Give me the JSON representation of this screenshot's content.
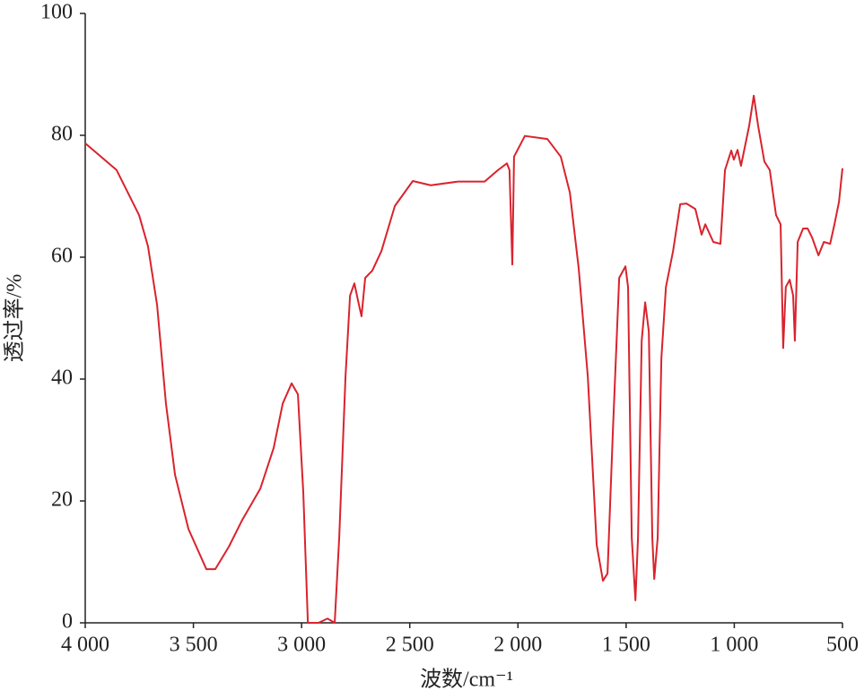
{
  "chart_data": {
    "type": "line",
    "xlabel": "波数/cm⁻¹",
    "ylabel": "透过率/%",
    "xlim": [
      4000,
      500
    ],
    "ylim": [
      0,
      100
    ],
    "xticks": [
      {
        "value": 4000,
        "label": "4 000"
      },
      {
        "value": 3500,
        "label": "3 500"
      },
      {
        "value": 3000,
        "label": "3 000"
      },
      {
        "value": 2500,
        "label": "2 500"
      },
      {
        "value": 2000,
        "label": "2 000"
      },
      {
        "value": 1500,
        "label": "1 500"
      },
      {
        "value": 1000,
        "label": "1 000"
      },
      500
    ],
    "yticks": [
      0,
      20,
      40,
      60,
      80,
      100
    ],
    "grid": false,
    "x": [
      4000,
      3855,
      3751,
      3710,
      3668,
      3627,
      3585,
      3523,
      3440,
      3399,
      3336,
      3274,
      3191,
      3129,
      3087,
      3046,
      3017,
      2992,
      2971,
      2922,
      2880,
      2847,
      2826,
      2797,
      2776,
      2756,
      2735,
      2723,
      2706,
      2673,
      2631,
      2569,
      2486,
      2403,
      2279,
      2154,
      2092,
      2051,
      2039,
      2026,
      2018,
      1968,
      1864,
      1802,
      1760,
      1719,
      1677,
      1636,
      1607,
      1586,
      1561,
      1532,
      1503,
      1491,
      1474,
      1457,
      1445,
      1428,
      1412,
      1395,
      1379,
      1370,
      1354,
      1337,
      1316,
      1283,
      1250,
      1221,
      1180,
      1151,
      1134,
      1097,
      1064,
      1043,
      1014,
      1002,
      985,
      969,
      931,
      910,
      890,
      861,
      836,
      807,
      786,
      774,
      762,
      744,
      728,
      720,
      707,
      682,
      661,
      640,
      611,
      586,
      557,
      537,
      516,
      500
    ],
    "series": [
      {
        "color": "#d9232d",
        "values": [
          78.7,
          74.3,
          66.9,
          61.8,
          52.2,
          36,
          24.3,
          15.4,
          8.8,
          8.8,
          12.5,
          16.9,
          22,
          28.7,
          36,
          39.3,
          37.5,
          21.3,
          0,
          0,
          0.7,
          0,
          14,
          40.4,
          53.7,
          55.7,
          52.2,
          50.3,
          56.6,
          57.8,
          61,
          68.4,
          72.5,
          71.8,
          72.4,
          72.4,
          74.3,
          75.4,
          74.3,
          58.8,
          76.5,
          79.9,
          79.4,
          76.5,
          70.6,
          58.1,
          40.4,
          12.8,
          6.9,
          8.1,
          31.6,
          56.6,
          58.5,
          55.1,
          14,
          3.7,
          14,
          46.3,
          52.6,
          47.8,
          14,
          7.2,
          14,
          43.4,
          55.1,
          61,
          68.7,
          68.8,
          67.9,
          63.7,
          65.4,
          62.5,
          62.2,
          74.3,
          77.5,
          76,
          77.6,
          75,
          81.6,
          86.5,
          81.6,
          75.7,
          74.3,
          66.9,
          65.4,
          45.1,
          55.1,
          56.3,
          53.7,
          46.3,
          62.5,
          64.7,
          64.7,
          63.2,
          60.3,
          62.5,
          62.2,
          65.4,
          69.1,
          74.6
        ]
      }
    ]
  }
}
